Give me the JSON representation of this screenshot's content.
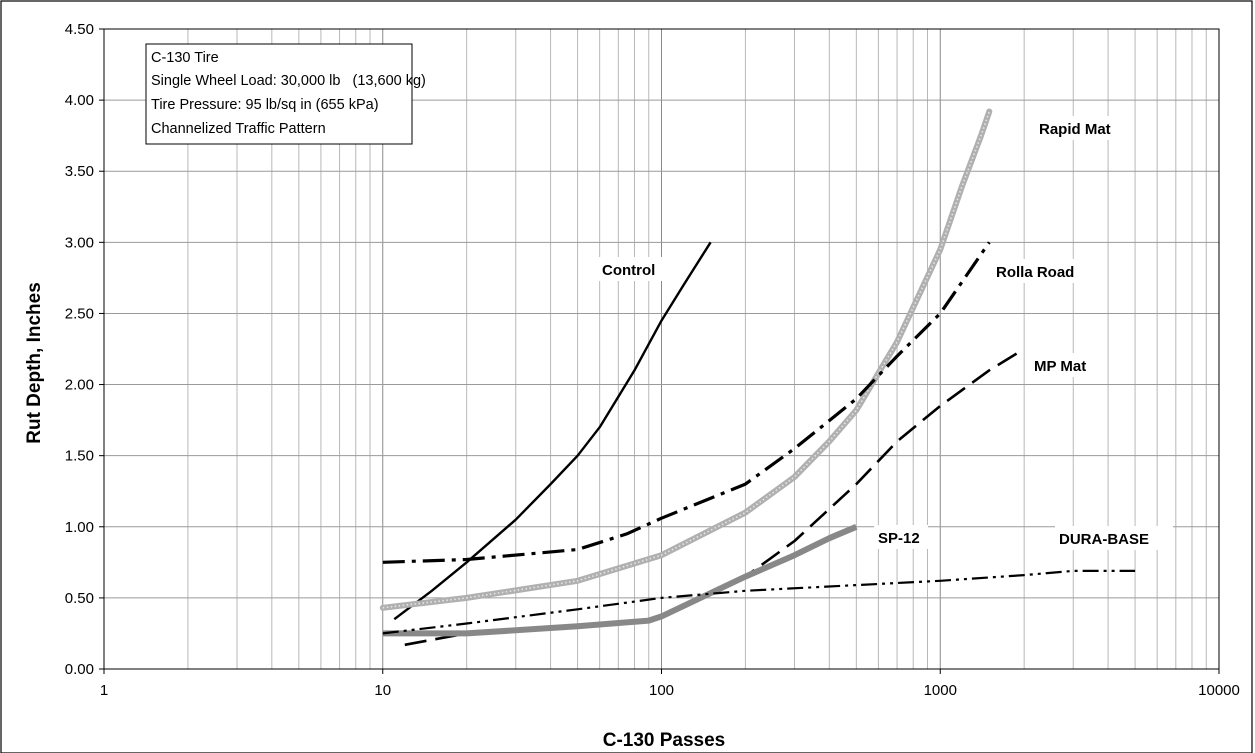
{
  "chart_data": {
    "type": "line",
    "xlabel": "C-130 Passes",
    "ylabel": "Rut Depth, Inches",
    "x_scale": "log",
    "xlim": [
      1,
      10000
    ],
    "ylim": [
      0,
      4.5
    ],
    "x_ticks": [
      "1",
      "10",
      "100",
      "1000",
      "10000"
    ],
    "y_ticks": [
      "0.00",
      "0.50",
      "1.00",
      "1.50",
      "2.00",
      "2.50",
      "3.00",
      "3.50",
      "4.00",
      "4.50"
    ],
    "grid": true,
    "annotation_lines": [
      "C-130 Tire",
      "Single Wheel Load: 30,000 lb   (13,600 kg)",
      "Tire Pressure: 95 lb/sq in (655 kPa)",
      "Channelized Traffic Pattern"
    ],
    "series": [
      {
        "name": "Control",
        "style": "solid",
        "color": "#000000",
        "x": [
          11,
          15,
          20,
          30,
          40,
          50,
          60,
          80,
          100,
          120,
          150
        ],
        "y": [
          0.35,
          0.55,
          0.75,
          1.05,
          1.3,
          1.5,
          1.7,
          2.1,
          2.45,
          2.7,
          3.0
        ]
      },
      {
        "name": "Rapid Mat",
        "style": "dotted-thick",
        "color": "#aaaaaa",
        "x": [
          10,
          20,
          50,
          100,
          200,
          300,
          400,
          500,
          700,
          1000,
          1200,
          1400,
          1500
        ],
        "y": [
          0.43,
          0.5,
          0.62,
          0.8,
          1.1,
          1.35,
          1.6,
          1.82,
          2.3,
          2.95,
          3.4,
          3.75,
          3.92
        ]
      },
      {
        "name": "Rolla Road",
        "style": "dash-dot",
        "color": "#000000",
        "x": [
          10,
          20,
          50,
          75,
          100,
          200,
          300,
          500,
          700,
          1000,
          1500
        ],
        "y": [
          0.75,
          0.77,
          0.84,
          0.95,
          1.06,
          1.3,
          1.55,
          1.9,
          2.2,
          2.5,
          3.0
        ]
      },
      {
        "name": "MP Mat",
        "style": "long-dash",
        "color": "#000000",
        "x": [
          12,
          20,
          50,
          100,
          200,
          300,
          500,
          700,
          1000,
          1500,
          2000
        ],
        "y": [
          0.17,
          0.25,
          0.3,
          0.36,
          0.65,
          0.9,
          1.3,
          1.6,
          1.85,
          2.1,
          2.25
        ]
      },
      {
        "name": "SP-12",
        "style": "solid-thick",
        "color": "#888888",
        "x": [
          10,
          20,
          50,
          90,
          100,
          200,
          300,
          400,
          500
        ],
        "y": [
          0.25,
          0.25,
          0.3,
          0.34,
          0.37,
          0.65,
          0.8,
          0.92,
          1.0
        ]
      },
      {
        "name": "DURA-BASE",
        "style": "dash-dot-dot",
        "color": "#000000",
        "x": [
          10,
          20,
          50,
          100,
          200,
          500,
          1000,
          2000,
          3000,
          5000
        ],
        "y": [
          0.25,
          0.32,
          0.42,
          0.5,
          0.55,
          0.59,
          0.62,
          0.66,
          0.69,
          0.69
        ]
      }
    ]
  }
}
